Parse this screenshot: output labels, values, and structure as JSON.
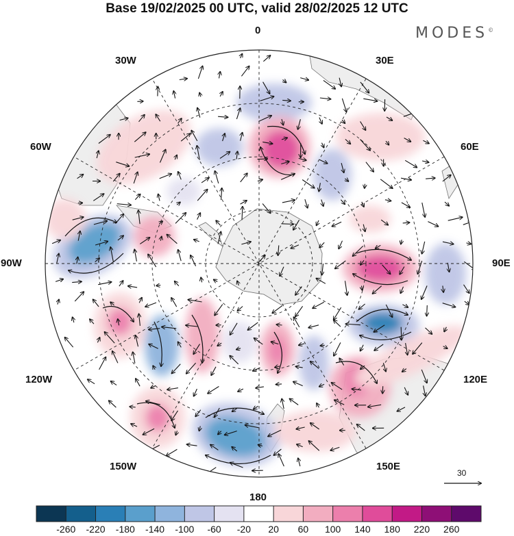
{
  "title": "Base 19/02/2025 00 UTC, valid 28/02/2025 12 UTC",
  "brand": "MODES",
  "brand_mark": "©",
  "longitude_labels": {
    "top": "0",
    "top_right": "30E",
    "right_upper": "60E",
    "right": "90E",
    "right_lower": "120E",
    "bottom_right": "150E",
    "bottom": "180",
    "bottom_left": "150W",
    "left_lower": "120W",
    "left": "90W",
    "left_upper": "60W",
    "top_left": "30W"
  },
  "vector_reference": {
    "label": "30"
  },
  "colorbar": {
    "ticks": [
      "-260",
      "-220",
      "-180",
      "-140",
      "-100",
      "-60",
      "-20",
      "20",
      "60",
      "100",
      "140",
      "180",
      "220",
      "260"
    ],
    "colors": [
      "#0c3653",
      "#145f8c",
      "#2a7fb6",
      "#5a9fcc",
      "#8fb4dd",
      "#bfc6e6",
      "#e4e2f1",
      "#ffffff",
      "#f8d6d9",
      "#f2adc0",
      "#ec7fac",
      "#e04c9a",
      "#c21a86",
      "#8e0f76",
      "#5e0a6b"
    ]
  },
  "map": {
    "land_color": "#eeeeee",
    "coast_color": "#777777",
    "grid_color": "#222222"
  }
}
